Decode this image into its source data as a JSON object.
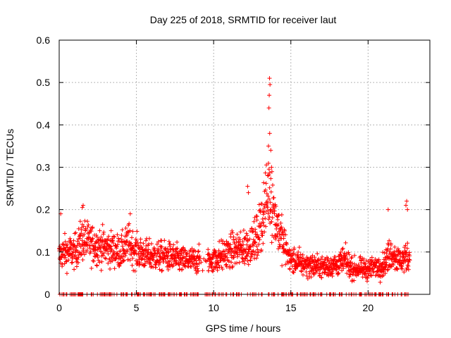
{
  "chart_data": {
    "type": "scatter",
    "title": "Day 225 of 2018, SRMTID for receiver laut",
    "xlabel": "GPS time / hours",
    "ylabel": "SRMTID / TECUs",
    "xlim": [
      0,
      24
    ],
    "ylim": [
      0,
      0.6
    ],
    "xticks": [
      0,
      5,
      10,
      15,
      20
    ],
    "yticks": [
      0,
      0.1,
      0.2,
      0.3,
      0.4,
      0.5,
      0.6
    ],
    "xtick_labels": [
      "0",
      "5",
      "10",
      "15",
      "20"
    ],
    "ytick_labels": [
      "0",
      "0.1",
      "0.2",
      "0.3",
      "0.4",
      "0.5",
      "0.6"
    ],
    "grid": true,
    "marker": "+",
    "series_color": "#ff0000",
    "profile_hours": [
      0,
      0.3,
      1.0,
      1.5,
      2.0,
      3.0,
      4.0,
      4.5,
      5.0,
      6.0,
      7.0,
      8.0,
      9.0,
      9.8,
      10.5,
      11.0,
      12.0,
      12.8,
      13.3,
      13.6,
      14.0,
      14.5,
      15.0,
      16.0,
      17.0,
      18.0,
      18.5,
      19.0,
      20.0,
      21.0,
      21.5,
      22.0,
      22.7
    ],
    "profile_median": [
      0.09,
      0.1,
      0.1,
      0.13,
      0.12,
      0.11,
      0.1,
      0.12,
      0.1,
      0.09,
      0.09,
      0.08,
      0.08,
      0.08,
      0.09,
      0.1,
      0.11,
      0.13,
      0.2,
      0.25,
      0.18,
      0.12,
      0.08,
      0.07,
      0.065,
      0.07,
      0.08,
      0.06,
      0.06,
      0.07,
      0.1,
      0.08,
      0.09
    ],
    "peak_points": [
      [
        13.62,
        0.51
      ],
      [
        13.65,
        0.495
      ],
      [
        13.6,
        0.47
      ],
      [
        13.58,
        0.44
      ],
      [
        13.63,
        0.38
      ],
      [
        13.55,
        0.35
      ],
      [
        13.7,
        0.34
      ],
      [
        13.75,
        0.3
      ],
      [
        13.5,
        0.28
      ],
      [
        12.2,
        0.255
      ],
      [
        12.25,
        0.24
      ],
      [
        1.55,
        0.21
      ],
      [
        1.5,
        0.205
      ],
      [
        22.5,
        0.22
      ],
      [
        22.45,
        0.21
      ],
      [
        22.55,
        0.2
      ],
      [
        21.3,
        0.2
      ],
      [
        4.6,
        0.19
      ],
      [
        0.1,
        0.19
      ]
    ],
    "gap_hours": [
      [
        9.1,
        9.6
      ]
    ],
    "zero_band_hours": [
      0,
      22.7
    ]
  }
}
